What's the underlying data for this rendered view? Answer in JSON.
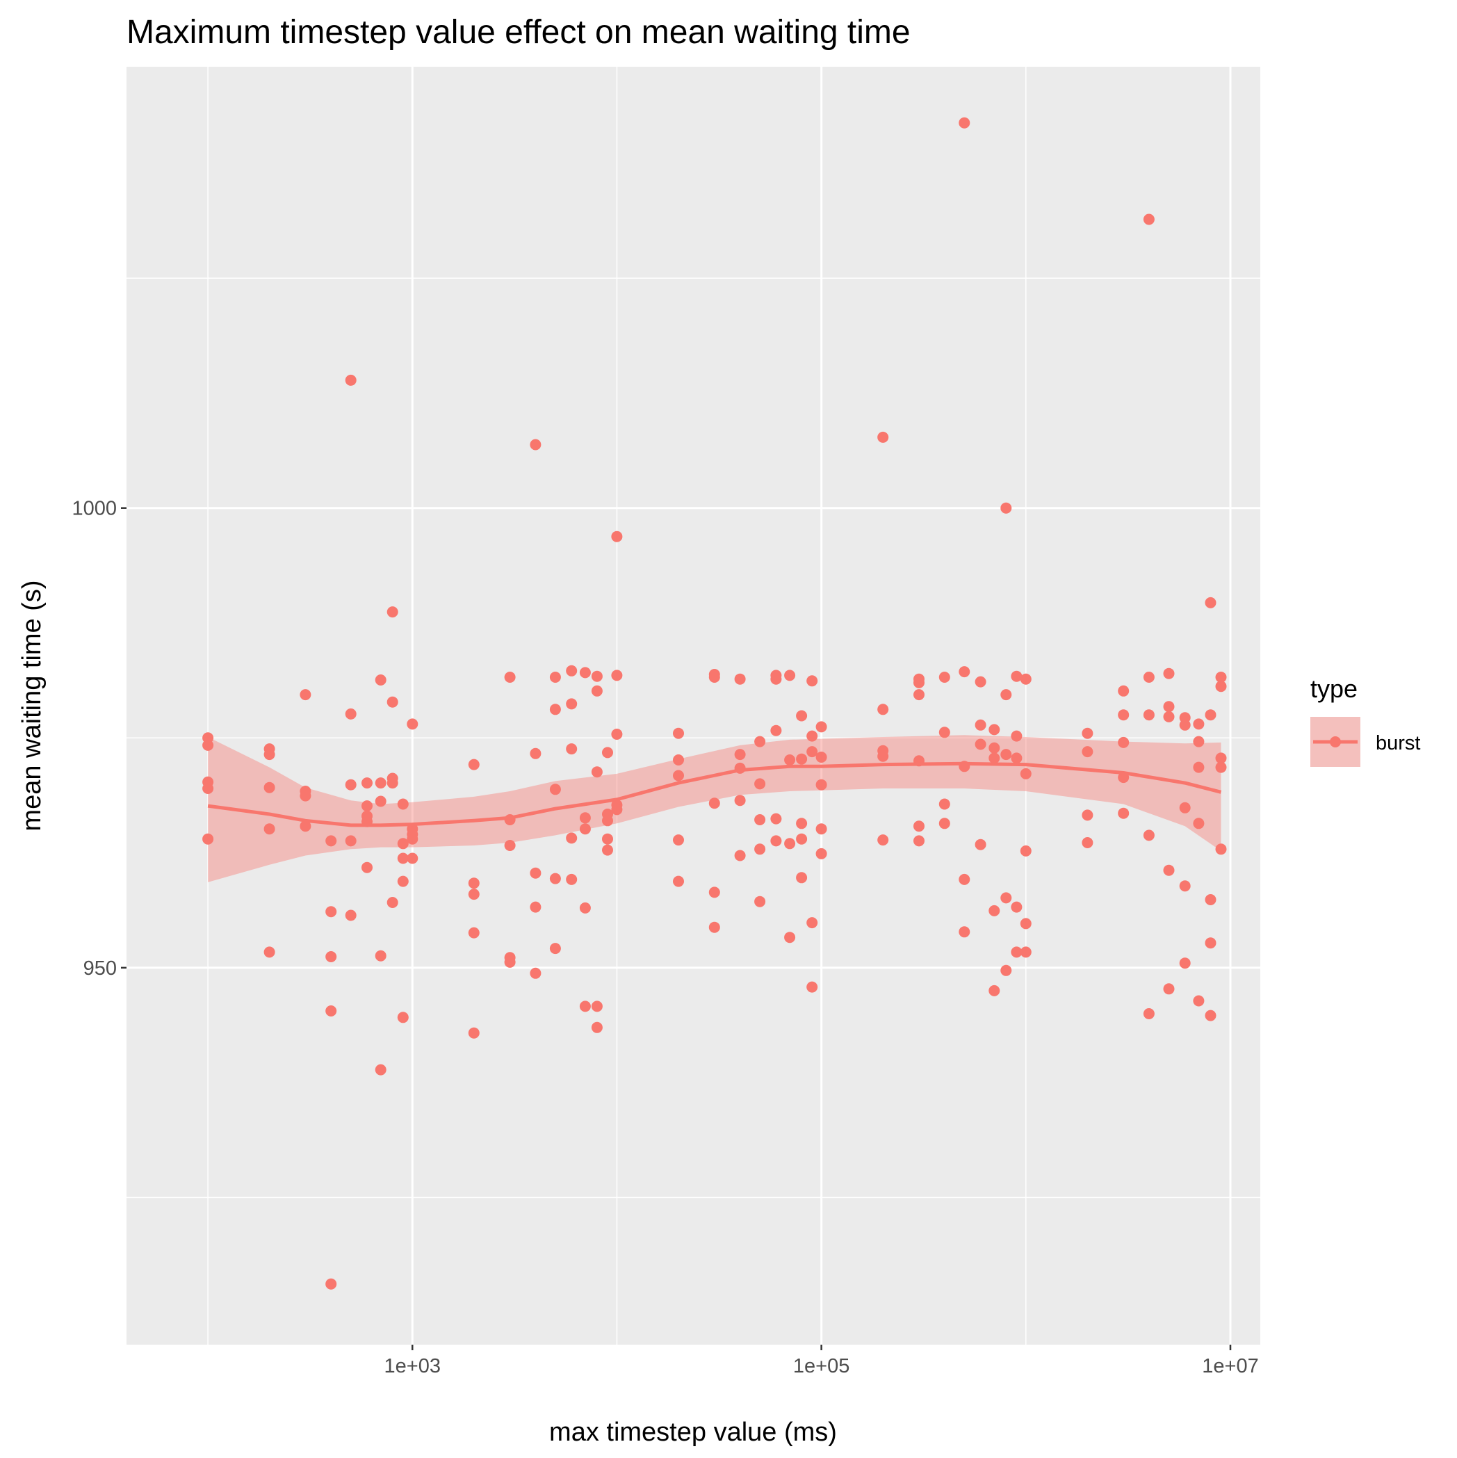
{
  "chart_data": {
    "type": "scatter",
    "title": "Maximum timestep value effect on mean waiting time",
    "xlabel": "max timestep value (ms)",
    "ylabel": "mean waiting time (s)",
    "x_scale": "log10",
    "xlim": [
      40,
      14000000
    ],
    "ylim": [
      909,
      1048
    ],
    "x_ticks": [
      {
        "value": 1000,
        "label": "1e+03"
      },
      {
        "value": 100000,
        "label": "1e+05"
      },
      {
        "value": 10000000,
        "label": "1e+07"
      }
    ],
    "y_ticks": [
      {
        "value": 950,
        "label": "950"
      },
      {
        "value": 1000,
        "label": "1000"
      }
    ],
    "x_minor_ticks": [
      100,
      10000,
      1000000
    ],
    "y_minor_ticks": [
      925,
      975,
      1025
    ],
    "grid": true,
    "legend": {
      "title": "type",
      "position": "right",
      "entries": [
        {
          "name": "burst",
          "color": "#F8766D"
        }
      ]
    },
    "series": [
      {
        "name": "burst",
        "color": "#F8766D",
        "points": [
          [
            100,
            975
          ],
          [
            100,
            974.2
          ],
          [
            100,
            970.2
          ],
          [
            100,
            969.5
          ],
          [
            100,
            964
          ],
          [
            200,
            973.8
          ],
          [
            200,
            973.2
          ],
          [
            200,
            969.6
          ],
          [
            200,
            965.1
          ],
          [
            200,
            951.7
          ],
          [
            300,
            979.7
          ],
          [
            300,
            969.2
          ],
          [
            300,
            968.7
          ],
          [
            300,
            965.4
          ],
          [
            400,
            963.8
          ],
          [
            400,
            956.1
          ],
          [
            400,
            951.2
          ],
          [
            400,
            945.3
          ],
          [
            400,
            915.6
          ],
          [
            500,
            1013.9
          ],
          [
            500,
            977.6
          ],
          [
            500,
            969.9
          ],
          [
            500,
            963.8
          ],
          [
            500,
            955.7
          ],
          [
            600,
            970.1
          ],
          [
            600,
            967.6
          ],
          [
            600,
            966.5
          ],
          [
            600,
            965.9
          ],
          [
            600,
            960.9
          ],
          [
            700,
            981.3
          ],
          [
            700,
            970.1
          ],
          [
            700,
            968.1
          ],
          [
            700,
            951.3
          ],
          [
            700,
            938.9
          ],
          [
            800,
            988.7
          ],
          [
            800,
            978.9
          ],
          [
            800,
            970.6
          ],
          [
            800,
            970.1
          ],
          [
            800,
            957.1
          ],
          [
            900,
            967.8
          ],
          [
            900,
            963.5
          ],
          [
            900,
            961.9
          ],
          [
            900,
            959.4
          ],
          [
            900,
            944.6
          ],
          [
            1000,
            976.5
          ],
          [
            1000,
            965.1
          ],
          [
            1000,
            964.5
          ],
          [
            1000,
            964
          ],
          [
            1000,
            961.9
          ],
          [
            2000,
            972.1
          ],
          [
            2000,
            959.2
          ],
          [
            2000,
            958
          ],
          [
            2000,
            953.8
          ],
          [
            2000,
            942.9
          ],
          [
            3000,
            981.6
          ],
          [
            3000,
            966.1
          ],
          [
            3000,
            963.3
          ],
          [
            3000,
            951.1
          ],
          [
            3000,
            950.6
          ],
          [
            4000,
            1006.9
          ],
          [
            4000,
            973.3
          ],
          [
            4000,
            960.3
          ],
          [
            4000,
            956.6
          ],
          [
            4000,
            949.4
          ],
          [
            5000,
            981.6
          ],
          [
            5000,
            978.1
          ],
          [
            5000,
            969.4
          ],
          [
            5000,
            959.7
          ],
          [
            5000,
            952.1
          ],
          [
            6000,
            982.3
          ],
          [
            6000,
            978.7
          ],
          [
            6000,
            973.8
          ],
          [
            6000,
            964.1
          ],
          [
            6000,
            959.6
          ],
          [
            7000,
            982.1
          ],
          [
            7000,
            966.3
          ],
          [
            7000,
            965.1
          ],
          [
            7000,
            956.5
          ],
          [
            7000,
            945.8
          ],
          [
            8000,
            981.7
          ],
          [
            8000,
            980.1
          ],
          [
            8000,
            971.3
          ],
          [
            8000,
            945.8
          ],
          [
            8000,
            943.5
          ],
          [
            9000,
            973.4
          ],
          [
            9000,
            966.7
          ],
          [
            9000,
            966
          ],
          [
            9000,
            964
          ],
          [
            9000,
            962.8
          ],
          [
            10000,
            996.9
          ],
          [
            10000,
            981.8
          ],
          [
            10000,
            975.4
          ],
          [
            10000,
            967.7
          ],
          [
            10000,
            967.2
          ],
          [
            20000,
            975.5
          ],
          [
            20000,
            972.6
          ],
          [
            20000,
            970.9
          ],
          [
            20000,
            963.9
          ],
          [
            20000,
            959.4
          ],
          [
            30000,
            981.9
          ],
          [
            30000,
            981.6
          ],
          [
            30000,
            967.9
          ],
          [
            30000,
            958.2
          ],
          [
            30000,
            954.4
          ],
          [
            40000,
            981.4
          ],
          [
            40000,
            973.2
          ],
          [
            40000,
            971.7
          ],
          [
            40000,
            968.2
          ],
          [
            40000,
            962.2
          ],
          [
            50000,
            974.6
          ],
          [
            50000,
            970
          ],
          [
            50000,
            966.1
          ],
          [
            50000,
            962.9
          ],
          [
            50000,
            957.2
          ],
          [
            60000,
            981.8
          ],
          [
            60000,
            981.4
          ],
          [
            60000,
            975.8
          ],
          [
            60000,
            966.2
          ],
          [
            60000,
            963.8
          ],
          [
            70000,
            981.8
          ],
          [
            70000,
            972.6
          ],
          [
            70000,
            963.5
          ],
          [
            70000,
            953.3
          ],
          [
            80000,
            977.4
          ],
          [
            80000,
            972.7
          ],
          [
            80000,
            965.7
          ],
          [
            80000,
            964
          ],
          [
            80000,
            959.8
          ],
          [
            90000,
            981.2
          ],
          [
            90000,
            975.2
          ],
          [
            90000,
            973.5
          ],
          [
            90000,
            954.9
          ],
          [
            90000,
            947.9
          ],
          [
            100000,
            976.2
          ],
          [
            100000,
            972.9
          ],
          [
            100000,
            969.9
          ],
          [
            100000,
            965.1
          ],
          [
            100000,
            962.4
          ],
          [
            200000,
            1007.7
          ],
          [
            200000,
            978.1
          ],
          [
            200000,
            973.6
          ],
          [
            200000,
            973
          ],
          [
            200000,
            963.9
          ],
          [
            300000,
            981.4
          ],
          [
            300000,
            981
          ],
          [
            300000,
            979.7
          ],
          [
            300000,
            972.5
          ],
          [
            300000,
            965.4
          ],
          [
            300000,
            963.8
          ],
          [
            400000,
            981.6
          ],
          [
            400000,
            975.6
          ],
          [
            400000,
            967.8
          ],
          [
            400000,
            965.7
          ],
          [
            500000,
            1041.9
          ],
          [
            500000,
            982.2
          ],
          [
            500000,
            971.9
          ],
          [
            500000,
            959.6
          ],
          [
            500000,
            953.9
          ],
          [
            600000,
            981.1
          ],
          [
            600000,
            976.4
          ],
          [
            600000,
            974.3
          ],
          [
            600000,
            963.4
          ],
          [
            700000,
            975.9
          ],
          [
            700000,
            973.9
          ],
          [
            700000,
            972.8
          ],
          [
            700000,
            956.2
          ],
          [
            700000,
            947.5
          ],
          [
            800000,
            1000
          ],
          [
            800000,
            979.7
          ],
          [
            800000,
            973.2
          ],
          [
            800000,
            957.6
          ],
          [
            800000,
            949.7
          ],
          [
            900000,
            981.7
          ],
          [
            900000,
            975.2
          ],
          [
            900000,
            972.8
          ],
          [
            900000,
            956.6
          ],
          [
            900000,
            951.7
          ],
          [
            1000000,
            981.4
          ],
          [
            1000000,
            971.1
          ],
          [
            1000000,
            962.7
          ],
          [
            1000000,
            954.8
          ],
          [
            1000000,
            951.7
          ],
          [
            2000000,
            975.5
          ],
          [
            2000000,
            973.5
          ],
          [
            2000000,
            966.6
          ],
          [
            2000000,
            963.6
          ],
          [
            3000000,
            980.1
          ],
          [
            3000000,
            977.5
          ],
          [
            3000000,
            974.5
          ],
          [
            3000000,
            970.7
          ],
          [
            3000000,
            966.8
          ],
          [
            4000000,
            1031.4
          ],
          [
            4000000,
            981.6
          ],
          [
            4000000,
            977.5
          ],
          [
            4000000,
            964.4
          ],
          [
            4000000,
            945
          ],
          [
            5000000,
            982
          ],
          [
            5000000,
            978.4
          ],
          [
            5000000,
            977.3
          ],
          [
            5000000,
            960.6
          ],
          [
            5000000,
            947.7
          ],
          [
            6000000,
            977.2
          ],
          [
            6000000,
            976.4
          ],
          [
            6000000,
            967.4
          ],
          [
            6000000,
            958.9
          ],
          [
            6000000,
            950.5
          ],
          [
            7000000,
            976.5
          ],
          [
            7000000,
            974.6
          ],
          [
            7000000,
            971.8
          ],
          [
            7000000,
            965.7
          ],
          [
            7000000,
            946.4
          ],
          [
            8000000,
            989.7
          ],
          [
            8000000,
            977.5
          ],
          [
            8000000,
            957.4
          ],
          [
            8000000,
            952.7
          ],
          [
            8000000,
            944.8
          ],
          [
            9000000,
            981.6
          ],
          [
            9000000,
            980.6
          ],
          [
            9000000,
            972.8
          ],
          [
            9000000,
            971.8
          ],
          [
            9000000,
            962.9
          ]
        ]
      }
    ],
    "smooth": {
      "method": "loess",
      "color": "#F8766D",
      "band_color": "#F8766D",
      "x": [
        100,
        200,
        300,
        500,
        700,
        1000,
        2000,
        3000,
        5000,
        10000,
        20000,
        40000,
        70000,
        100000,
        200000,
        500000,
        1000000,
        3000000,
        6000000,
        9000000
      ],
      "y": [
        967.6,
        966.7,
        966,
        965.5,
        965.5,
        965.6,
        966,
        966.3,
        967.3,
        968.3,
        970.1,
        971.5,
        971.9,
        971.9,
        972.1,
        972.2,
        972.1,
        971.2,
        970.1,
        969.1
      ],
      "y_lower": [
        959.3,
        961.2,
        962.2,
        962.9,
        963.1,
        963.1,
        963.3,
        963.6,
        964.4,
        965.7,
        967.5,
        968.8,
        969.2,
        969.3,
        969.5,
        969.5,
        969.2,
        967.8,
        965.4,
        962.7
      ],
      "y_upper": [
        975.1,
        971.8,
        969.6,
        968.2,
        967.8,
        968,
        968.6,
        969.2,
        970.3,
        971.1,
        972.7,
        974.2,
        974.8,
        974.9,
        975.1,
        975.3,
        975.1,
        974.6,
        974.4,
        974.5
      ]
    }
  }
}
